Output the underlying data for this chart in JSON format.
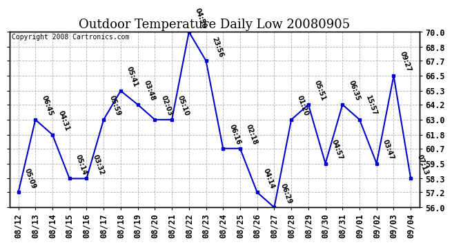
{
  "title": "Outdoor Temperature Daily Low 20080905",
  "copyright": "Copyright 2008 Cartronics.com",
  "dates": [
    "08/12",
    "08/13",
    "08/14",
    "08/15",
    "08/16",
    "08/17",
    "08/18",
    "08/19",
    "08/20",
    "08/21",
    "08/22",
    "08/23",
    "08/24",
    "08/25",
    "08/26",
    "08/27",
    "08/28",
    "08/29",
    "08/30",
    "08/31",
    "09/01",
    "09/02",
    "09/03",
    "09/04"
  ],
  "values": [
    57.2,
    63.0,
    61.8,
    58.3,
    58.3,
    63.0,
    65.3,
    64.2,
    63.0,
    63.0,
    70.0,
    67.7,
    60.7,
    60.7,
    57.2,
    56.0,
    63.0,
    64.2,
    59.5,
    64.2,
    63.0,
    59.5,
    66.5,
    58.3
  ],
  "labels": [
    "05:09",
    "06:45",
    "04:31",
    "05:14",
    "03:32",
    "05:59",
    "05:41",
    "03:48",
    "02:03",
    "05:10",
    "04:50",
    "23:56",
    "06:16",
    "02:18",
    "04:14",
    "06:29",
    "01:20",
    "05:51",
    "04:57",
    "06:35",
    "15:57",
    "03:47",
    "09:27",
    "07:13"
  ],
  "ylim": [
    56.0,
    70.0
  ],
  "yticks": [
    56.0,
    57.2,
    58.3,
    59.5,
    60.7,
    61.8,
    63.0,
    64.2,
    65.3,
    66.5,
    67.7,
    68.8,
    70.0
  ],
  "line_color": "#0000cc",
  "marker_color": "#0000cc",
  "background_color": "#ffffff",
  "grid_color": "#b0b0b0",
  "title_fontsize": 13,
  "label_fontsize": 7,
  "tick_fontsize": 8.5,
  "copyright_fontsize": 7
}
